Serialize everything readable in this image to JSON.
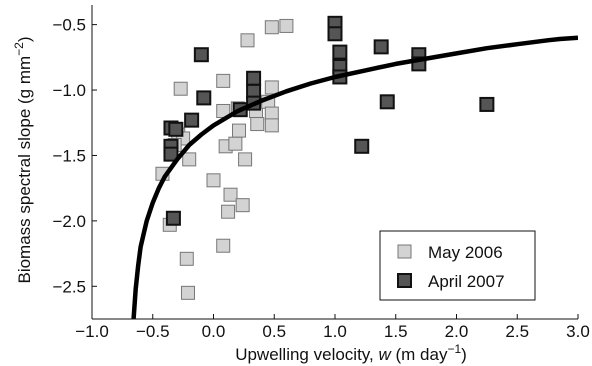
{
  "chart_data": {
    "type": "scatter",
    "xlabel": {
      "pre": "Upwelling velocity, ",
      "italic": "w",
      "units_pre": " (m day",
      "units_sup": "−1",
      "units_post": ")"
    },
    "ylabel": {
      "pre": "Biomass spectral slope (g mm",
      "sup": "−2",
      "post": ")"
    },
    "xlim": [
      -1.0,
      3.0
    ],
    "ylim": [
      -2.75,
      -0.35
    ],
    "xticks": [
      -1.0,
      -0.5,
      0.0,
      0.5,
      1.0,
      1.5,
      2.0,
      2.5,
      3.0
    ],
    "xtick_labels": [
      "−1.0",
      "−0.5",
      "0.0",
      "0.5",
      "1.0",
      "1.5",
      "2.0",
      "2.5",
      "3.0"
    ],
    "yticks": [
      -0.5,
      -1.0,
      -1.5,
      -2.0,
      -2.5
    ],
    "ytick_labels": [
      "−0.5",
      "−1.0",
      "−1.5",
      "−2.0",
      "−2.5"
    ],
    "legend_position": "lower-right",
    "series": [
      {
        "name": "May 2006",
        "color": "#d3d3d3",
        "marker": "square",
        "points": [
          [
            -0.27,
            -0.99
          ],
          [
            -0.42,
            -1.64
          ],
          [
            -0.36,
            -2.03
          ],
          [
            -0.22,
            -2.29
          ],
          [
            -0.21,
            -2.55
          ],
          [
            -0.29,
            -1.34
          ],
          [
            -0.25,
            -1.37
          ],
          [
            -0.2,
            -1.53
          ],
          [
            -0.32,
            -1.42
          ],
          [
            0.0,
            -1.69
          ],
          [
            0.08,
            -2.19
          ],
          [
            0.08,
            -0.93
          ],
          [
            0.08,
            -1.16
          ],
          [
            0.1,
            -1.43
          ],
          [
            0.12,
            -1.93
          ],
          [
            0.14,
            -1.8
          ],
          [
            0.18,
            -1.41
          ],
          [
            0.2,
            -1.14
          ],
          [
            0.21,
            -1.31
          ],
          [
            0.24,
            -1.88
          ],
          [
            0.26,
            -1.53
          ],
          [
            0.28,
            -0.62
          ],
          [
            0.35,
            -1.16
          ],
          [
            0.36,
            -1.26
          ],
          [
            0.45,
            -1.09
          ],
          [
            0.48,
            -0.98
          ],
          [
            0.48,
            -1.18
          ],
          [
            0.48,
            -1.27
          ],
          [
            0.48,
            -0.52
          ],
          [
            0.6,
            -0.51
          ]
        ]
      },
      {
        "name": "April 2007",
        "color": "#555555",
        "marker": "square",
        "points": [
          [
            -0.35,
            -1.29
          ],
          [
            -0.35,
            -1.43
          ],
          [
            -0.35,
            -1.49
          ],
          [
            -0.33,
            -1.98
          ],
          [
            -0.31,
            -1.3
          ],
          [
            -0.18,
            -1.23
          ],
          [
            -0.1,
            -0.73
          ],
          [
            -0.08,
            -1.06
          ],
          [
            0.22,
            -1.15
          ],
          [
            0.33,
            -0.91
          ],
          [
            0.33,
            -1.01
          ],
          [
            0.33,
            -1.1
          ],
          [
            1.0,
            -0.49
          ],
          [
            1.0,
            -0.57
          ],
          [
            1.04,
            -0.71
          ],
          [
            1.04,
            -0.82
          ],
          [
            1.04,
            -0.9
          ],
          [
            1.22,
            -1.43
          ],
          [
            1.38,
            -0.67
          ],
          [
            1.43,
            -1.09
          ],
          [
            1.69,
            -0.73
          ],
          [
            1.69,
            -0.8
          ],
          [
            2.25,
            -1.11
          ]
        ]
      }
    ],
    "fit_curve": {
      "points": [
        [
          -0.66,
          -2.78
        ],
        [
          -0.64,
          -2.52
        ],
        [
          -0.62,
          -2.34
        ],
        [
          -0.6,
          -2.2
        ],
        [
          -0.55,
          -2.0
        ],
        [
          -0.5,
          -1.86
        ],
        [
          -0.45,
          -1.75
        ],
        [
          -0.4,
          -1.66
        ],
        [
          -0.3,
          -1.53
        ],
        [
          -0.2,
          -1.42
        ],
        [
          -0.1,
          -1.34
        ],
        [
          0.0,
          -1.27
        ],
        [
          0.2,
          -1.16
        ],
        [
          0.4,
          -1.08
        ],
        [
          0.6,
          -1.01
        ],
        [
          0.8,
          -0.95
        ],
        [
          1.0,
          -0.9
        ],
        [
          1.25,
          -0.85
        ],
        [
          1.5,
          -0.8
        ],
        [
          1.75,
          -0.76
        ],
        [
          2.0,
          -0.72
        ],
        [
          2.25,
          -0.68
        ],
        [
          2.5,
          -0.65
        ],
        [
          2.75,
          -0.62
        ],
        [
          2.85,
          -0.61
        ],
        [
          3.0,
          -0.6
        ]
      ]
    }
  }
}
